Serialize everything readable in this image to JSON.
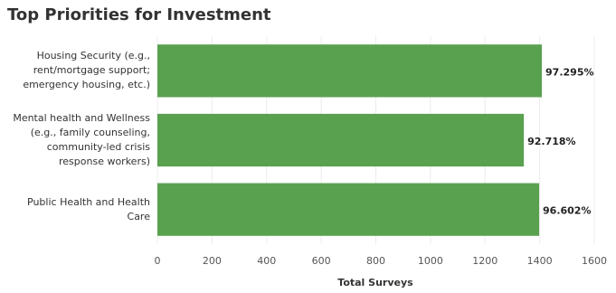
{
  "chart_data": {
    "type": "hbar",
    "title": "Top Priorities for Investment",
    "categories": [
      "Housing Security (e.g., rent/mortgage support; emergency housing, etc.)",
      "Mental health and Wellness (e.g., family counseling, community-led crisis response workers)",
      "Public Health and Health Care"
    ],
    "values": [
      1408,
      1342,
      1398
    ],
    "percent_labels": [
      "97.295%",
      "92.718%",
      "96.602%"
    ],
    "color": "#59a14f",
    "xlabel": "Total Surveys",
    "xlim": [
      0,
      1600
    ],
    "xticks": [
      0,
      200,
      400,
      600,
      800,
      1000,
      1200,
      1400,
      1600
    ],
    "grid": true
  }
}
